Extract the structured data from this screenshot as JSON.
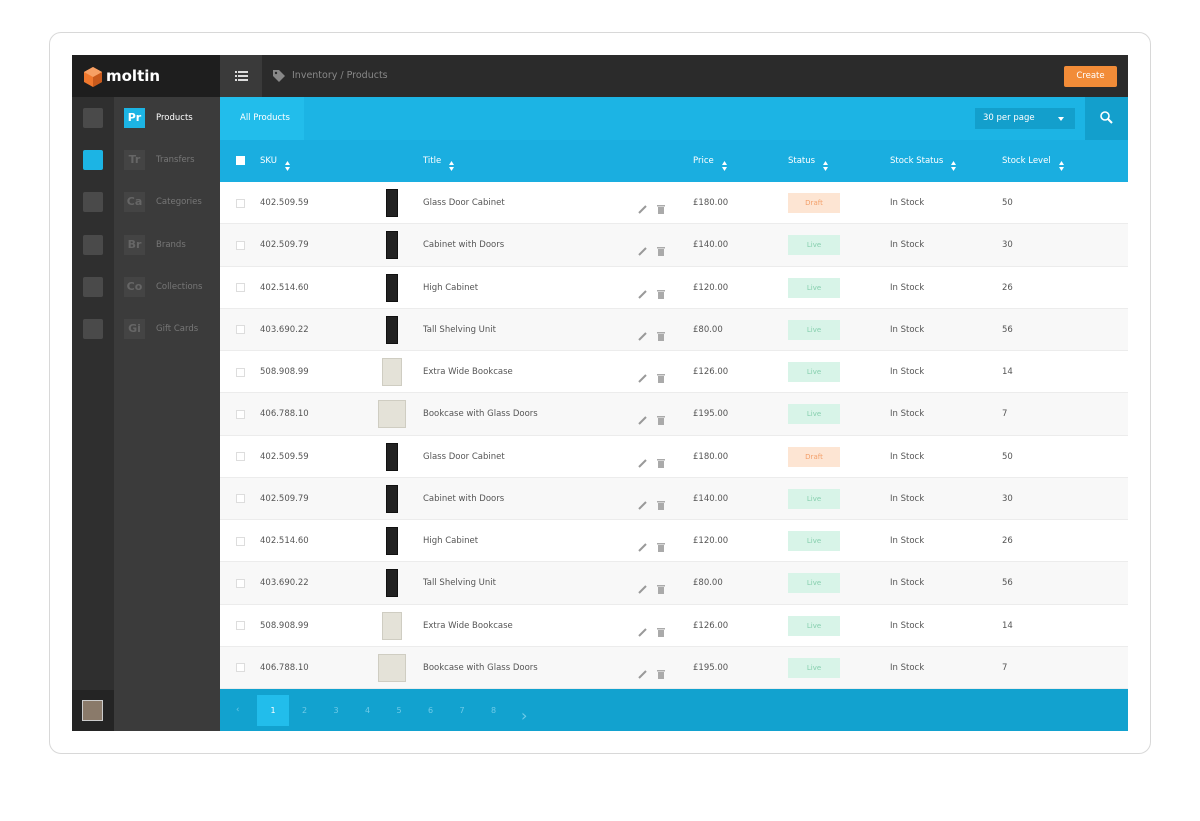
{
  "brand": "moltin",
  "breadcrumb": "Inventory / Products",
  "create_button": "Create",
  "nav": [
    {
      "abbr": "Pr",
      "label": "Products"
    },
    {
      "abbr": "Tr",
      "label": "Transfers"
    },
    {
      "abbr": "Ca",
      "label": "Categories"
    },
    {
      "abbr": "Br",
      "label": "Brands"
    },
    {
      "abbr": "Co",
      "label": "Collections"
    },
    {
      "abbr": "Gi",
      "label": "Gift Cards"
    }
  ],
  "tab": "All Products",
  "per_page": "30 per page",
  "table": {
    "columns": [
      "SKU",
      "Title",
      "Price",
      "Status",
      "Stock Status",
      "Stock Level"
    ],
    "rows": [
      [
        "402.509.59",
        "Glass Door Cabinet",
        "£180.00",
        "Draft",
        "In Stock",
        50
      ],
      [
        "402.509.79",
        "Cabinet with Doors",
        "£140.00",
        "Live",
        "In Stock",
        30
      ],
      [
        "402.514.60",
        "High Cabinet",
        "£120.00",
        "Live",
        "In Stock",
        26
      ],
      [
        "403.690.22",
        "Tall Shelving Unit",
        "£80.00",
        "Live",
        "In Stock",
        56
      ],
      [
        "508.908.99",
        "Extra Wide Bookcase",
        "£126.00",
        "Live",
        "In Stock",
        14
      ],
      [
        "406.788.10",
        "Bookcase with Glass Doors",
        "£195.00",
        "Live",
        "In Stock",
        7
      ],
      [
        "402.509.59",
        "Glass Door Cabinet",
        "£180.00",
        "Draft",
        "In Stock",
        50
      ],
      [
        "402.509.79",
        "Cabinet with Doors",
        "£140.00",
        "Live",
        "In Stock",
        30
      ],
      [
        "402.514.60",
        "High Cabinet",
        "£120.00",
        "Live",
        "In Stock",
        26
      ],
      [
        "403.690.22",
        "Tall Shelving Unit",
        "£80.00",
        "Live",
        "In Stock",
        56
      ],
      [
        "508.908.99",
        "Extra Wide Bookcase",
        "£126.00",
        "Live",
        "In Stock",
        14
      ],
      [
        "406.788.10",
        "Bookcase with Glass Doors",
        "£195.00",
        "Live",
        "In Stock",
        7
      ]
    ]
  },
  "pagination": [
    1,
    2,
    3,
    4,
    5,
    6,
    7,
    8
  ]
}
